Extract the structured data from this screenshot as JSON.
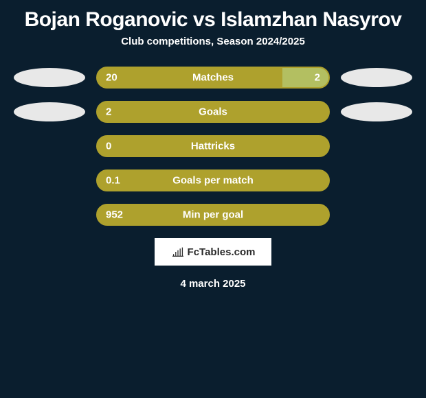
{
  "title": "Bojan Roganovic vs Islamzhan Nasyrov",
  "subtitle": "Club competitions, Season 2024/2025",
  "date": "4 march 2025",
  "logo_text": "FcTables.com",
  "colors": {
    "background": "#0a1e2e",
    "bar_primary": "#aea12d",
    "bar_secondary": "#b3bf61",
    "ellipse": "#e8e8e8",
    "text": "#ffffff"
  },
  "stats": [
    {
      "label": "Matches",
      "left_value": "20",
      "right_value": "2",
      "left_pct": 80,
      "right_pct": 20,
      "show_left_photo": true,
      "show_right_photo": true,
      "left_color": "#aea12d",
      "right_color": "#b3bf61",
      "border_color": "#aea12d"
    },
    {
      "label": "Goals",
      "left_value": "2",
      "right_value": "",
      "left_pct": 100,
      "right_pct": 0,
      "show_left_photo": true,
      "show_right_photo": true,
      "left_color": "#aea12d",
      "right_color": "#b3bf61",
      "border_color": "#aea12d"
    },
    {
      "label": "Hattricks",
      "left_value": "0",
      "right_value": "",
      "left_pct": 100,
      "right_pct": 0,
      "show_left_photo": false,
      "show_right_photo": false,
      "left_color": "#aea12d",
      "right_color": "#b3bf61",
      "border_color": "#aea12d"
    },
    {
      "label": "Goals per match",
      "left_value": "0.1",
      "right_value": "",
      "left_pct": 100,
      "right_pct": 0,
      "show_left_photo": false,
      "show_right_photo": false,
      "left_color": "#aea12d",
      "right_color": "#b3bf61",
      "border_color": "#aea12d"
    },
    {
      "label": "Min per goal",
      "left_value": "952",
      "right_value": "",
      "left_pct": 100,
      "right_pct": 0,
      "show_left_photo": false,
      "show_right_photo": false,
      "left_color": "#aea12d",
      "right_color": "#b3bf61",
      "border_color": "#aea12d"
    }
  ]
}
